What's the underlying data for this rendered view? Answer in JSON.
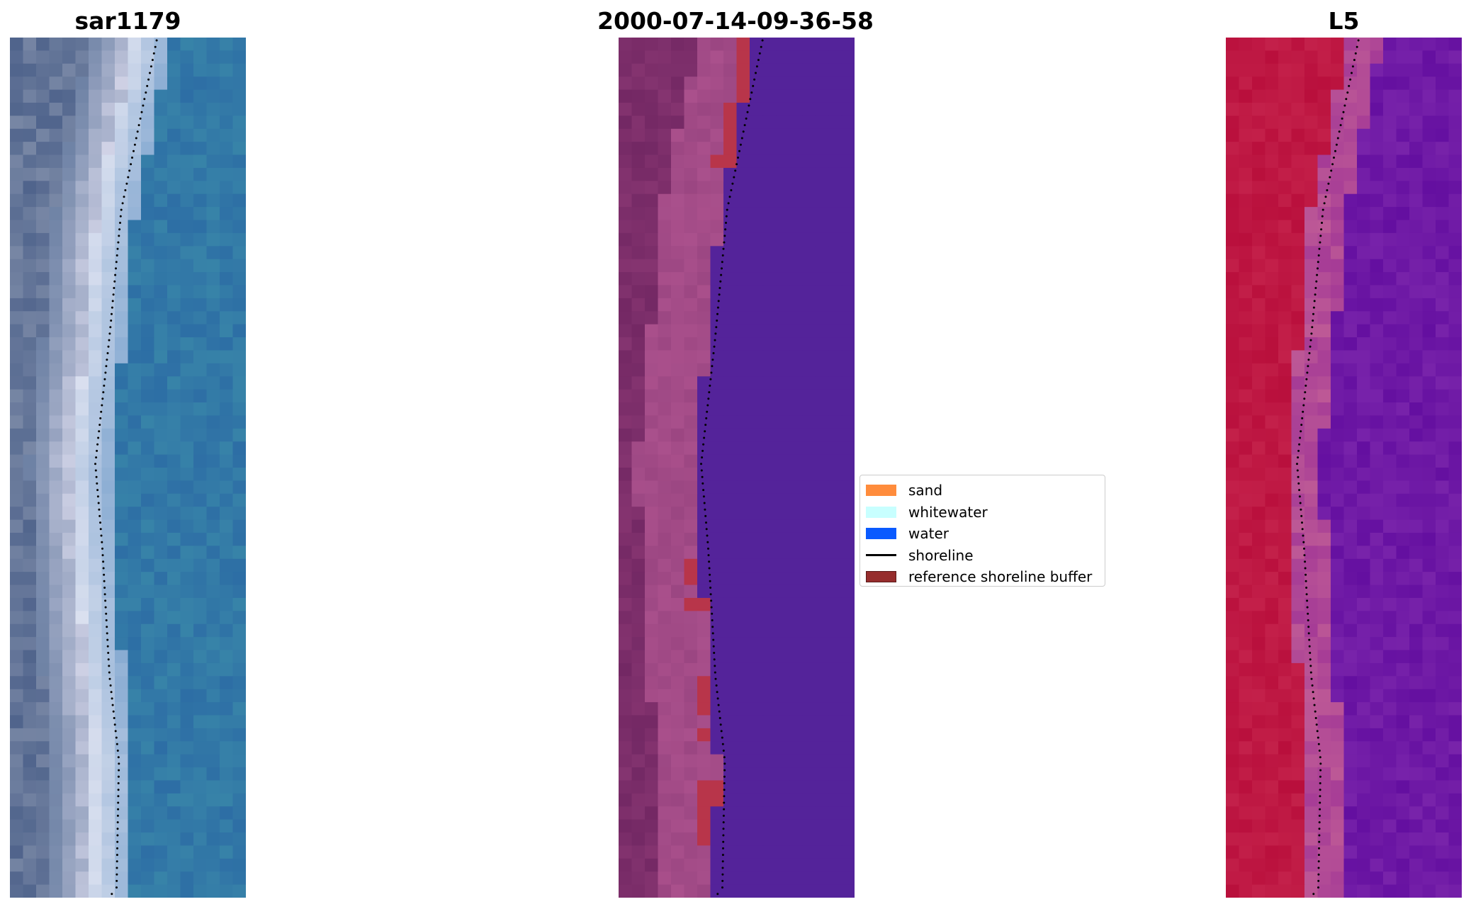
{
  "panels": [
    {
      "id": "rgb",
      "title": "sar1179"
    },
    {
      "id": "classified",
      "title": "2000-07-14-09-36-58"
    },
    {
      "id": "mndwi",
      "title": "L5"
    }
  ],
  "legend": {
    "items": [
      {
        "label": "sand",
        "color": "#ff8c3c",
        "kind": "patch"
      },
      {
        "label": "whitewater",
        "color": "#c8ffff",
        "kind": "patch"
      },
      {
        "label": "water",
        "color": "#0a5aff",
        "kind": "patch"
      },
      {
        "label": "shoreline",
        "color": "#000000",
        "kind": "line"
      },
      {
        "label": "reference shoreline buffer",
        "color": "#962d2d",
        "kind": "patch"
      }
    ]
  },
  "colors": {
    "shoreline_dots": "#000000",
    "water_class": "#54239a",
    "buffer_class": "#b8354a"
  }
}
